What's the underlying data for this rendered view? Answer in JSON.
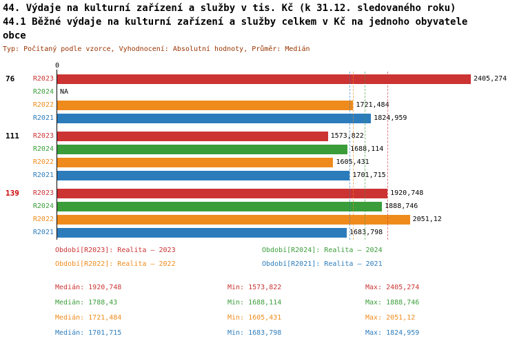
{
  "title": {
    "line1": "44. Výdaje na kulturní zařízení a služby v tis. Kč (k 31.12. sledovaného roku)",
    "line2": "44.1 Běžné výdaje na kulturní zařízení a služby celkem v Kč na jednoho obyvatele",
    "line3": "obce"
  },
  "subtitle": "Typ: Počítaný podle vzorce, Vyhodnocení: Absolutní hodnoty, Průměr: Medián",
  "axis": {
    "zero_label": "0"
  },
  "colors": {
    "R2023": "#cc3333",
    "R2024": "#3a9d3a",
    "R2022": "#ef8b1d",
    "R2021": "#2c7cbc",
    "subtitle": "#993300",
    "highlight_group": "#cc0000",
    "value_label": "#000000"
  },
  "chart_data": {
    "type": "bar",
    "orientation": "horizontal",
    "xlim": [
      0,
      2405.274
    ],
    "series_order": [
      "R2023",
      "R2024",
      "R2022",
      "R2021"
    ],
    "groups": [
      {
        "label": "76",
        "highlighted": false,
        "bars": [
          {
            "series": "R2023",
            "value": 2405.274,
            "value_label": "2405,274"
          },
          {
            "series": "R2024",
            "value": null,
            "value_label": "NA"
          },
          {
            "series": "R2022",
            "value": 1721.484,
            "value_label": "1721,484"
          },
          {
            "series": "R2021",
            "value": 1824.959,
            "value_label": "1824,959"
          }
        ]
      },
      {
        "label": "111",
        "highlighted": false,
        "bars": [
          {
            "series": "R2023",
            "value": 1573.822,
            "value_label": "1573,822"
          },
          {
            "series": "R2024",
            "value": 1688.114,
            "value_label": "1688,114"
          },
          {
            "series": "R2022",
            "value": 1605.431,
            "value_label": "1605,431"
          },
          {
            "series": "R2021",
            "value": 1701.715,
            "value_label": "1701,715"
          }
        ]
      },
      {
        "label": "139",
        "highlighted": true,
        "bars": [
          {
            "series": "R2023",
            "value": 1920.748,
            "value_label": "1920,748"
          },
          {
            "series": "R2024",
            "value": 1888.746,
            "value_label": "1888,746"
          },
          {
            "series": "R2022",
            "value": 2051.12,
            "value_label": "2051,12"
          },
          {
            "series": "R2021",
            "value": 1683.798,
            "value_label": "1683,798"
          }
        ]
      }
    ],
    "median_lines": [
      {
        "series": "R2023",
        "value": 1920.748
      },
      {
        "series": "R2024",
        "value": 1788.43
      },
      {
        "series": "R2022",
        "value": 1721.484
      },
      {
        "series": "R2021",
        "value": 1701.715
      }
    ]
  },
  "legend": [
    {
      "series": "R2023",
      "label": "Období[R2023]: Realita – 2023"
    },
    {
      "series": "R2024",
      "label": "Období[R2024]: Realita – 2024"
    },
    {
      "series": "R2022",
      "label": "Období[R2022]: Realita – 2022"
    },
    {
      "series": "R2021",
      "label": "Období[R2021]: Realita – 2021"
    }
  ],
  "stats": [
    {
      "series": "R2023",
      "median": "Medián: 1920,748",
      "min": "Min: 1573,822",
      "max": "Max: 2405,274"
    },
    {
      "series": "R2024",
      "median": "Medián: 1788,43",
      "min": "Min: 1688,114",
      "max": "Max: 1888,746"
    },
    {
      "series": "R2022",
      "median": "Medián: 1721,484",
      "min": "Min: 1605,431",
      "max": "Max: 2051,12"
    },
    {
      "series": "R2021",
      "median": "Medián: 1701,715",
      "min": "Min: 1683,798",
      "max": "Max: 1824,959"
    }
  ]
}
